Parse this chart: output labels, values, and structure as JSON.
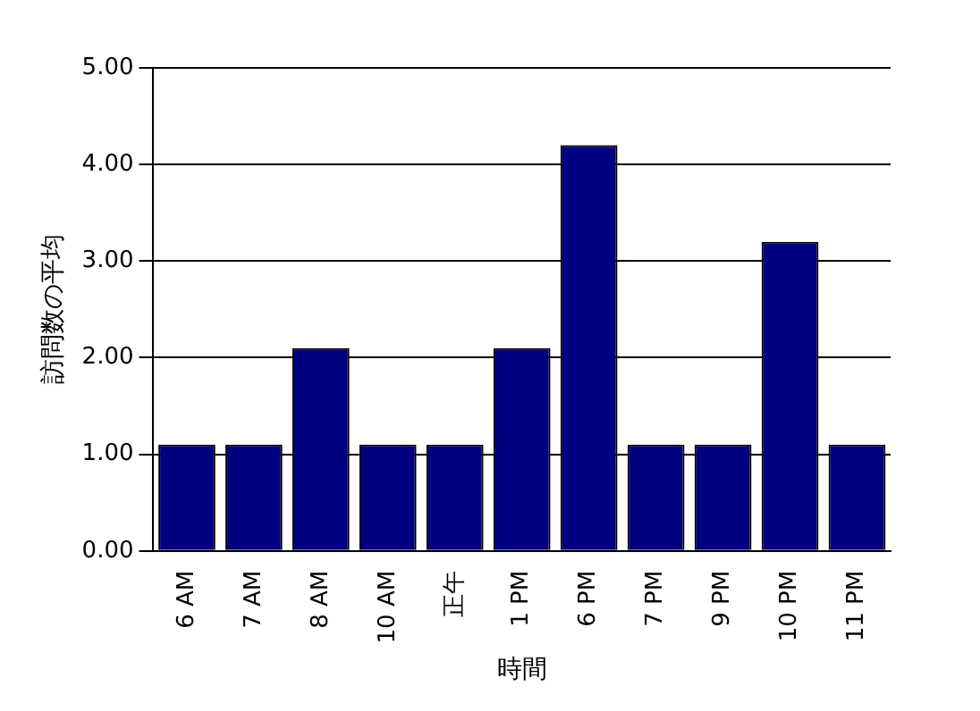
{
  "chart_data": {
    "type": "bar",
    "xlabel": "時間",
    "ylabel": "訪問数の平均",
    "categories": [
      "6 AM",
      "7 AM",
      "8 AM",
      "10 AM",
      "正午",
      "1 PM",
      "6 PM",
      "7 PM",
      "9 PM",
      "10 PM",
      "11 PM"
    ],
    "values": [
      1.1,
      1.1,
      2.1,
      1.1,
      1.1,
      2.1,
      4.2,
      1.1,
      1.1,
      3.2,
      1.1
    ],
    "color": "#000080",
    "ylim": [
      0,
      5
    ],
    "yticks": [
      {
        "value": 0,
        "label": "0.00"
      },
      {
        "value": 1,
        "label": "1.00"
      },
      {
        "value": 2,
        "label": "2.00"
      },
      {
        "value": 3,
        "label": "3.00"
      },
      {
        "value": 4,
        "label": "4.00"
      },
      {
        "value": 5,
        "label": "5.00"
      }
    ],
    "grid": "y"
  }
}
